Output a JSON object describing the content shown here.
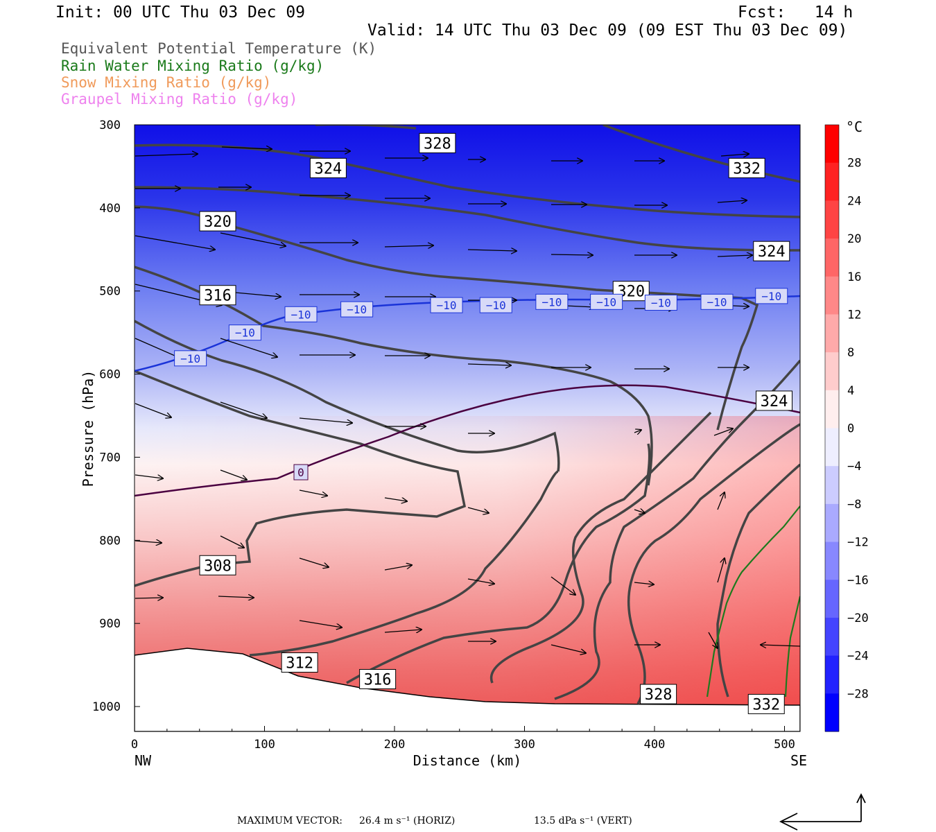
{
  "header": {
    "init": "Init: 00 UTC Thu 03 Dec 09",
    "fcst": "Fcst:   14 h",
    "valid": "Valid: 14 UTC Thu 03 Dec 09 (09 EST Thu 03 Dec 09)"
  },
  "legend": [
    {
      "label": "Equivalent Potential Temperature (K)",
      "color": "#555555"
    },
    {
      "label": "Rain Water Mixing Ratio (g/kg)",
      "color": "#1a7a1a"
    },
    {
      "label": "Snow Mixing Ratio (g/kg)",
      "color": "#f09a5a"
    },
    {
      "label": "Graupel Mixing Ratio (g/kg)",
      "color": "#ee82ee"
    }
  ],
  "chart_data": {
    "type": "contour",
    "xlabel": "Distance (km)",
    "ylabel": "Pressure (hPa)",
    "xlim": [
      0,
      512
    ],
    "ylim": [
      1030,
      300
    ],
    "x_ticks": [
      0,
      100,
      200,
      300,
      400,
      500
    ],
    "y_ticks": [
      300,
      400,
      500,
      600,
      700,
      800,
      900,
      1000
    ],
    "x_end_labels": {
      "left": "NW",
      "right": "SE"
    },
    "colorbar": {
      "unit": "°C",
      "tick_labels": [
        "28",
        "24",
        "20",
        "16",
        "12",
        "8",
        "4",
        "0",
        "−4",
        "−8",
        "−12",
        "−16",
        "−20",
        "−24",
        "−28"
      ],
      "min": -32,
      "max": 32,
      "step": 4
    },
    "theta_e_labels": [
      {
        "text": "328",
        "x": 233,
        "p": 322
      },
      {
        "text": "324",
        "x": 149,
        "p": 352
      },
      {
        "text": "332",
        "x": 471,
        "p": 352
      },
      {
        "text": "320",
        "x": 64,
        "p": 416
      },
      {
        "text": "324",
        "x": 490,
        "p": 452
      },
      {
        "text": "316",
        "x": 64,
        "p": 505
      },
      {
        "text": "320",
        "x": 382,
        "p": 500
      },
      {
        "text": "324",
        "x": 492,
        "p": 632
      },
      {
        "text": "308",
        "x": 64,
        "p": 830
      },
      {
        "text": "312",
        "x": 127,
        "p": 947
      },
      {
        "text": "316",
        "x": 187,
        "p": 967
      },
      {
        "text": "328",
        "x": 403,
        "p": 985
      },
      {
        "text": "332",
        "x": 486,
        "p": 997
      }
    ],
    "temp_labels": [
      {
        "text": "−10",
        "x": 43,
        "p": 581
      },
      {
        "text": "−10",
        "x": 85,
        "p": 550
      },
      {
        "text": "−10",
        "x": 128,
        "p": 528
      },
      {
        "text": "−10",
        "x": 171,
        "p": 522
      },
      {
        "text": "−10",
        "x": 240,
        "p": 517
      },
      {
        "text": "−10",
        "x": 278,
        "p": 517
      },
      {
        "text": "−10",
        "x": 321,
        "p": 513
      },
      {
        "text": "−10",
        "x": 363,
        "p": 513
      },
      {
        "text": "−10",
        "x": 405,
        "p": 514
      },
      {
        "text": "−10",
        "x": 448,
        "p": 513
      },
      {
        "text": "−10",
        "x": 490,
        "p": 506
      },
      {
        "text": "0",
        "x": 128,
        "p": 718
      }
    ],
    "max_vector": {
      "label": "MAXIMUM VECTOR:",
      "horiz": "26.4 m s⁻¹ (HORIZ)",
      "vert": "13.5 dPa s⁻¹ (VERT)"
    }
  }
}
